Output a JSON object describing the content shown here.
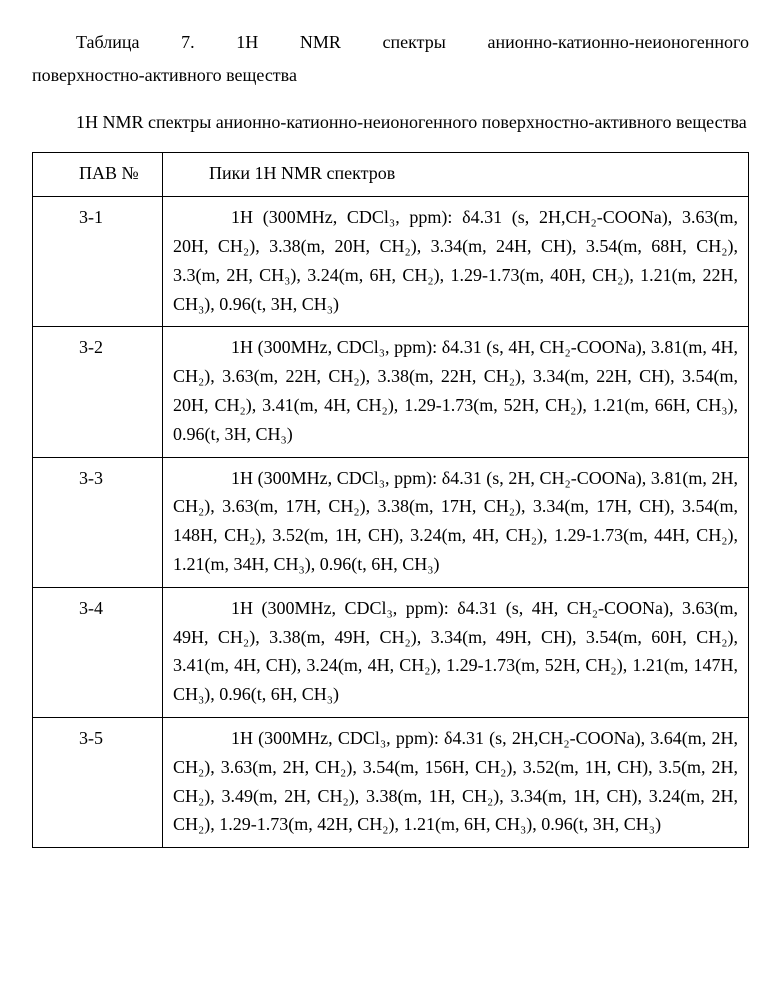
{
  "caption_line1": "Таблица 7. 1H NMR спектры анионно-катионно-неионогенного",
  "caption_line2": "поверхностно-активного вещества",
  "intro": "1H NMR спектры анионно-катионно-неионогенного поверхностно-активного вещества",
  "table": {
    "columns": [
      "ПАВ №",
      "Пики 1H NMR спектров"
    ],
    "rows": [
      {
        "id": "3-1",
        "spec": "1H (300MHz, CDCl₃, ppm): δ4.31 (s, 2H,CH₂-COONa), 3.63(m, 20H, CH₂), 3.38(m, 20H, CH₂), 3.34(m, 24H, CH), 3.54(m, 68H, CH₂), 3.3(m, 2H, CH₃), 3.24(m, 6H, CH₂), 1.29-1.73(m, 40H, CH₂), 1.21(m, 22H, CH₃), 0.96(t, 3H, CH₃)"
      },
      {
        "id": "3-2",
        "spec": "1H (300MHz, CDCl₃, ppm): δ4.31 (s, 4H, CH₂-COONa), 3.81(m, 4H, CH₂), 3.63(m, 22H, CH₂), 3.38(m, 22H, CH₂), 3.34(m, 22H, CH), 3.54(m, 20H, CH₂), 3.41(m, 4H, CH₂), 1.29-1.73(m, 52H, CH₂), 1.21(m, 66H, CH₃), 0.96(t, 3H, CH₃)"
      },
      {
        "id": "3-3",
        "spec": "1H (300MHz, CDCl₃, ppm): δ4.31 (s, 2H, CH₂-COONa), 3.81(m, 2H, CH₂), 3.63(m, 17H, CH₂), 3.38(m, 17H, CH₂), 3.34(m, 17H, CH), 3.54(m, 148H, CH₂), 3.52(m, 1H, CH), 3.24(m, 4H, CH₂), 1.29-1.73(m, 44H, CH₂), 1.21(m, 34H, CH₃), 0.96(t, 6H, CH₃)"
      },
      {
        "id": "3-4",
        "spec": "1H (300MHz, CDCl₃, ppm): δ4.31 (s, 4H, CH₂-COONa), 3.63(m, 49H, CH₂), 3.38(m, 49H, CH₂), 3.34(m, 49H, CH), 3.54(m, 60H, CH₂), 3.41(m, 4H, CH), 3.24(m, 4H, CH₂), 1.29-1.73(m, 52H, CH₂), 1.21(m, 147H, CH₃), 0.96(t, 6H, CH₃)"
      },
      {
        "id": "3-5",
        "spec": "1H (300MHz, CDCl₃, ppm): δ4.31 (s, 2H,CH₂-COONa), 3.64(m, 2H, CH₂), 3.63(m, 2H, CH₂), 3.54(m, 156H, CH₂), 3.52(m, 1H, CH), 3.5(m, 2H, CH₂), 3.49(m, 2H, CH₂), 3.38(m, 1H, CH₂), 3.34(m, 1H, CH), 3.24(m, 2H, CH₂), 1.29-1.73(m, 42H, CH₂), 1.21(m, 6H, CH₃), 0.96(t, 3H, CH₃)"
      }
    ]
  }
}
